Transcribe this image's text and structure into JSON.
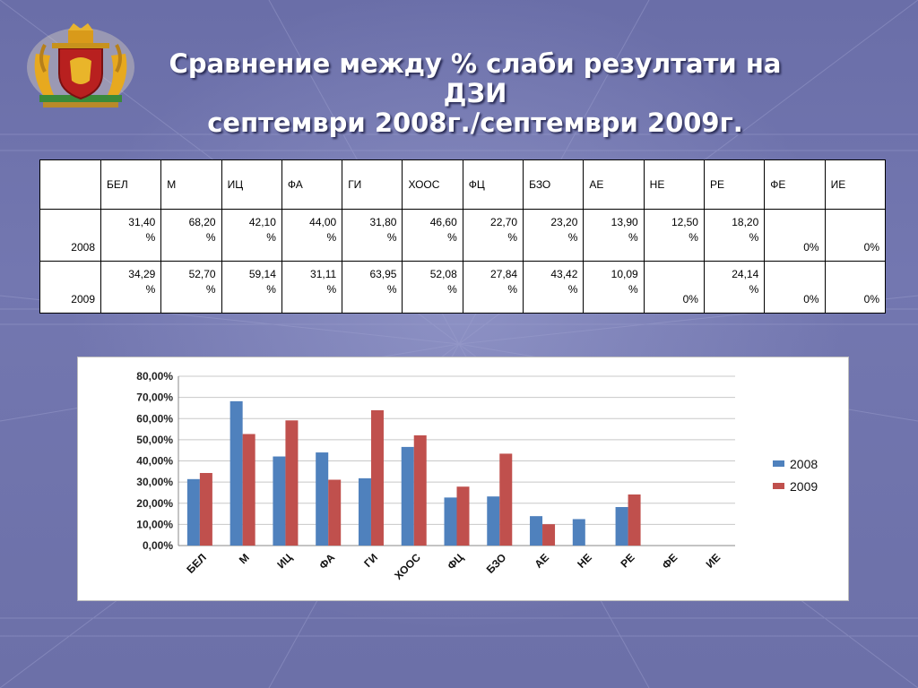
{
  "slide": {
    "title_line1": "Сравнение между % слаби резултати на ДЗИ",
    "title_line2": "септември 2008г./септември 2009г."
  },
  "table": {
    "headers": [
      "",
      "БЕЛ",
      "М",
      "ИЦ",
      "ФА",
      "ГИ",
      "ХООС",
      "ФЦ",
      "БЗО",
      "АЕ",
      "НЕ",
      "РЕ",
      "ФЕ",
      "ИЕ"
    ],
    "rows": [
      {
        "year": "2008",
        "cells": [
          [
            "31,40",
            "%"
          ],
          [
            "68,20",
            "%"
          ],
          [
            "42,10",
            "%"
          ],
          [
            "44,00",
            "%"
          ],
          [
            "31,80",
            "%"
          ],
          [
            "46,60",
            "%"
          ],
          [
            "22,70",
            "%"
          ],
          [
            "23,20",
            "%"
          ],
          [
            "13,90",
            "%"
          ],
          [
            "12,50",
            "%"
          ],
          [
            "18,20",
            "%"
          ],
          [
            "0%",
            ""
          ],
          [
            "0%",
            ""
          ]
        ]
      },
      {
        "year": "2009",
        "cells": [
          [
            "34,29",
            "%"
          ],
          [
            "52,70",
            "%"
          ],
          [
            "59,14",
            "%"
          ],
          [
            "31,11",
            "%"
          ],
          [
            "63,95",
            "%"
          ],
          [
            "52,08",
            "%"
          ],
          [
            "27,84",
            "%"
          ],
          [
            "43,42",
            "%"
          ],
          [
            "10,09",
            "%"
          ],
          [
            "0%",
            ""
          ],
          [
            "24,14",
            "%"
          ],
          [
            "0%",
            ""
          ],
          [
            "0%",
            ""
          ]
        ]
      }
    ]
  },
  "chart_data": {
    "type": "bar",
    "categories": [
      "БЕЛ",
      "М",
      "ИЦ",
      "ФА",
      "ГИ",
      "ХООС",
      "ФЦ",
      "БЗО",
      "АЕ",
      "НЕ",
      "РЕ",
      "ФЕ",
      "ИЕ"
    ],
    "series": [
      {
        "name": "2008",
        "color": "#4f81bd",
        "values": [
          31.4,
          68.2,
          42.1,
          44.0,
          31.8,
          46.6,
          22.7,
          23.2,
          13.9,
          12.5,
          18.2,
          0,
          0
        ]
      },
      {
        "name": "2009",
        "color": "#c0504d",
        "values": [
          34.29,
          52.7,
          59.14,
          31.11,
          63.95,
          52.08,
          27.84,
          43.42,
          10.09,
          0,
          24.14,
          0,
          0
        ]
      }
    ],
    "yticks": [
      "0,00%",
      "10,00%",
      "20,00%",
      "30,00%",
      "40,00%",
      "50,00%",
      "60,00%",
      "70,00%",
      "80,00%"
    ],
    "ylim": [
      0,
      80
    ],
    "grid": true,
    "legend": "right"
  }
}
